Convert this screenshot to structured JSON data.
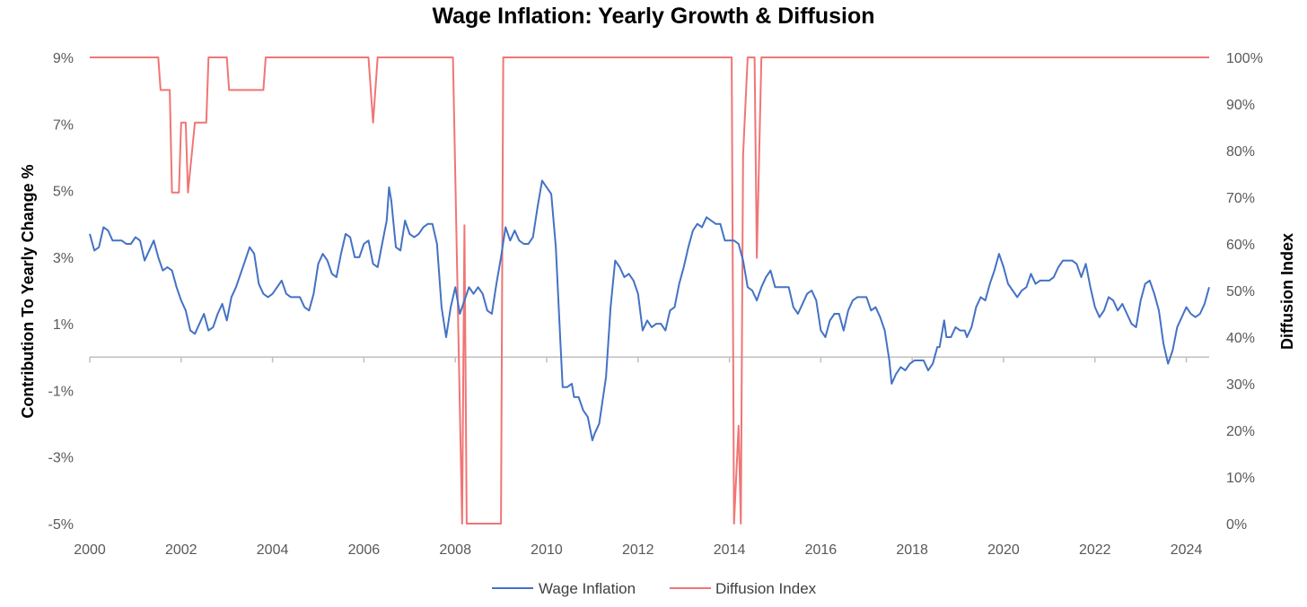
{
  "chart_data": {
    "type": "line",
    "title": "Wage Inflation: Yearly Growth & Diffusion",
    "y_left_label": "Contribution To Yearly Change %",
    "y_right_label": "Diffusion Index",
    "x_ticks": [
      "2000",
      "2002",
      "2004",
      "2006",
      "2008",
      "2010",
      "2012",
      "2014",
      "2016",
      "2018",
      "2020",
      "2022",
      "2024"
    ],
    "y_left_ticks": [
      "9%",
      "7%",
      "5%",
      "3%",
      "1%",
      "-1%",
      "-3%",
      "-5%"
    ],
    "y_right_ticks": [
      "100%",
      "90%",
      "80%",
      "70%",
      "60%",
      "50%",
      "40%",
      "30%",
      "20%",
      "10%",
      "0%"
    ],
    "xlim": [
      2000,
      2024.5
    ],
    "ylim_left": [
      -5,
      9
    ],
    "ylim_right": [
      0,
      100
    ],
    "grid": false,
    "legend_position": "bottom",
    "series": [
      {
        "name": "Wage Inflation",
        "axis": "left",
        "color": "#4472C4",
        "points": [
          [
            2000.0,
            3.7
          ],
          [
            2000.1,
            3.2
          ],
          [
            2000.2,
            3.3
          ],
          [
            2000.3,
            3.9
          ],
          [
            2000.4,
            3.8
          ],
          [
            2000.5,
            3.5
          ],
          [
            2000.7,
            3.5
          ],
          [
            2000.8,
            3.4
          ],
          [
            2000.9,
            3.4
          ],
          [
            2001.0,
            3.6
          ],
          [
            2001.1,
            3.5
          ],
          [
            2001.2,
            2.9
          ],
          [
            2001.4,
            3.5
          ],
          [
            2001.5,
            3.0
          ],
          [
            2001.6,
            2.6
          ],
          [
            2001.7,
            2.7
          ],
          [
            2001.8,
            2.6
          ],
          [
            2001.9,
            2.1
          ],
          [
            2002.0,
            1.7
          ],
          [
            2002.1,
            1.4
          ],
          [
            2002.2,
            0.8
          ],
          [
            2002.3,
            0.7
          ],
          [
            2002.4,
            1.0
          ],
          [
            2002.5,
            1.3
          ],
          [
            2002.6,
            0.8
          ],
          [
            2002.7,
            0.9
          ],
          [
            2002.8,
            1.3
          ],
          [
            2002.9,
            1.6
          ],
          [
            2003.0,
            1.1
          ],
          [
            2003.1,
            1.8
          ],
          [
            2003.2,
            2.1
          ],
          [
            2003.3,
            2.5
          ],
          [
            2003.4,
            2.9
          ],
          [
            2003.5,
            3.3
          ],
          [
            2003.6,
            3.1
          ],
          [
            2003.7,
            2.2
          ],
          [
            2003.8,
            1.9
          ],
          [
            2003.9,
            1.8
          ],
          [
            2004.0,
            1.9
          ],
          [
            2004.1,
            2.1
          ],
          [
            2004.2,
            2.3
          ],
          [
            2004.3,
            1.9
          ],
          [
            2004.4,
            1.8
          ],
          [
            2004.5,
            1.8
          ],
          [
            2004.6,
            1.8
          ],
          [
            2004.7,
            1.5
          ],
          [
            2004.8,
            1.4
          ],
          [
            2004.9,
            1.9
          ],
          [
            2005.0,
            2.8
          ],
          [
            2005.1,
            3.1
          ],
          [
            2005.2,
            2.9
          ],
          [
            2005.3,
            2.5
          ],
          [
            2005.4,
            2.4
          ],
          [
            2005.5,
            3.1
          ],
          [
            2005.6,
            3.7
          ],
          [
            2005.7,
            3.6
          ],
          [
            2005.8,
            3.0
          ],
          [
            2005.9,
            3.0
          ],
          [
            2006.0,
            3.4
          ],
          [
            2006.1,
            3.5
          ],
          [
            2006.2,
            2.8
          ],
          [
            2006.3,
            2.7
          ],
          [
            2006.4,
            3.4
          ],
          [
            2006.5,
            4.1
          ],
          [
            2006.55,
            5.1
          ],
          [
            2006.6,
            4.7
          ],
          [
            2006.7,
            3.3
          ],
          [
            2006.8,
            3.2
          ],
          [
            2006.9,
            4.1
          ],
          [
            2007.0,
            3.7
          ],
          [
            2007.1,
            3.6
          ],
          [
            2007.2,
            3.7
          ],
          [
            2007.3,
            3.9
          ],
          [
            2007.4,
            4.0
          ],
          [
            2007.5,
            4.0
          ],
          [
            2007.6,
            3.4
          ],
          [
            2007.7,
            1.5
          ],
          [
            2007.8,
            0.6
          ],
          [
            2007.9,
            1.5
          ],
          [
            2008.0,
            2.1
          ],
          [
            2008.1,
            1.3
          ],
          [
            2008.2,
            1.7
          ],
          [
            2008.3,
            2.1
          ],
          [
            2008.4,
            1.9
          ],
          [
            2008.5,
            2.1
          ],
          [
            2008.6,
            1.9
          ],
          [
            2008.7,
            1.4
          ],
          [
            2008.8,
            1.3
          ],
          [
            2008.9,
            2.2
          ],
          [
            2009.0,
            3.0
          ],
          [
            2009.1,
            3.9
          ],
          [
            2009.2,
            3.5
          ],
          [
            2009.3,
            3.8
          ],
          [
            2009.4,
            3.5
          ],
          [
            2009.5,
            3.4
          ],
          [
            2009.6,
            3.4
          ],
          [
            2009.7,
            3.6
          ],
          [
            2009.8,
            4.5
          ],
          [
            2009.9,
            5.3
          ],
          [
            2010.0,
            5.1
          ],
          [
            2010.1,
            4.9
          ],
          [
            2010.2,
            3.3
          ],
          [
            2010.3,
            0.5
          ],
          [
            2010.35,
            -0.9
          ],
          [
            2010.45,
            -0.9
          ],
          [
            2010.55,
            -0.8
          ],
          [
            2010.6,
            -1.2
          ],
          [
            2010.7,
            -1.2
          ],
          [
            2010.8,
            -1.6
          ],
          [
            2010.9,
            -1.8
          ],
          [
            2011.0,
            -2.5
          ],
          [
            2011.05,
            -2.3
          ],
          [
            2011.15,
            -2.0
          ],
          [
            2011.3,
            -0.6
          ],
          [
            2011.4,
            1.5
          ],
          [
            2011.5,
            2.9
          ],
          [
            2011.6,
            2.7
          ],
          [
            2011.7,
            2.4
          ],
          [
            2011.8,
            2.5
          ],
          [
            2011.9,
            2.3
          ],
          [
            2012.0,
            1.9
          ],
          [
            2012.1,
            0.8
          ],
          [
            2012.2,
            1.1
          ],
          [
            2012.3,
            0.9
          ],
          [
            2012.4,
            1.0
          ],
          [
            2012.5,
            1.0
          ],
          [
            2012.6,
            0.8
          ],
          [
            2012.7,
            1.4
          ],
          [
            2012.8,
            1.5
          ],
          [
            2012.9,
            2.2
          ],
          [
            2013.0,
            2.7
          ],
          [
            2013.1,
            3.3
          ],
          [
            2013.2,
            3.8
          ],
          [
            2013.3,
            4.0
          ],
          [
            2013.4,
            3.9
          ],
          [
            2013.5,
            4.2
          ],
          [
            2013.6,
            4.1
          ],
          [
            2013.7,
            4.0
          ],
          [
            2013.8,
            4.0
          ],
          [
            2013.9,
            3.5
          ],
          [
            2014.0,
            3.5
          ],
          [
            2014.1,
            3.5
          ],
          [
            2014.2,
            3.4
          ],
          [
            2014.3,
            2.9
          ],
          [
            2014.4,
            2.1
          ],
          [
            2014.5,
            2.0
          ],
          [
            2014.6,
            1.7
          ],
          [
            2014.7,
            2.1
          ],
          [
            2014.8,
            2.4
          ],
          [
            2014.9,
            2.6
          ],
          [
            2015.0,
            2.1
          ],
          [
            2015.1,
            2.1
          ],
          [
            2015.2,
            2.1
          ],
          [
            2015.3,
            2.1
          ],
          [
            2015.4,
            1.5
          ],
          [
            2015.5,
            1.3
          ],
          [
            2015.6,
            1.6
          ],
          [
            2015.7,
            1.9
          ],
          [
            2015.8,
            2.0
          ],
          [
            2015.9,
            1.7
          ],
          [
            2016.0,
            0.8
          ],
          [
            2016.1,
            0.6
          ],
          [
            2016.2,
            1.1
          ],
          [
            2016.3,
            1.3
          ],
          [
            2016.4,
            1.3
          ],
          [
            2016.5,
            0.8
          ],
          [
            2016.6,
            1.4
          ],
          [
            2016.7,
            1.7
          ],
          [
            2016.8,
            1.8
          ],
          [
            2016.9,
            1.8
          ],
          [
            2017.0,
            1.8
          ],
          [
            2017.1,
            1.4
          ],
          [
            2017.2,
            1.5
          ],
          [
            2017.3,
            1.2
          ],
          [
            2017.4,
            0.8
          ],
          [
            2017.5,
            -0.1
          ],
          [
            2017.55,
            -0.8
          ],
          [
            2017.65,
            -0.5
          ],
          [
            2017.75,
            -0.3
          ],
          [
            2017.85,
            -0.4
          ],
          [
            2017.95,
            -0.2
          ],
          [
            2018.05,
            -0.1
          ],
          [
            2018.15,
            -0.1
          ],
          [
            2018.25,
            -0.1
          ],
          [
            2018.35,
            -0.4
          ],
          [
            2018.45,
            -0.2
          ],
          [
            2018.55,
            0.3
          ],
          [
            2018.6,
            0.3
          ],
          [
            2018.7,
            1.1
          ],
          [
            2018.75,
            0.6
          ],
          [
            2018.85,
            0.6
          ],
          [
            2018.95,
            0.9
          ],
          [
            2019.05,
            0.8
          ],
          [
            2019.15,
            0.8
          ],
          [
            2019.2,
            0.6
          ],
          [
            2019.3,
            0.9
          ],
          [
            2019.4,
            1.5
          ],
          [
            2019.5,
            1.8
          ],
          [
            2019.6,
            1.7
          ],
          [
            2019.7,
            2.2
          ],
          [
            2019.8,
            2.6
          ],
          [
            2019.9,
            3.1
          ],
          [
            2020.0,
            2.7
          ],
          [
            2020.1,
            2.2
          ],
          [
            2020.2,
            2.0
          ],
          [
            2020.3,
            1.8
          ],
          [
            2020.4,
            2.0
          ],
          [
            2020.5,
            2.1
          ],
          [
            2020.6,
            2.5
          ],
          [
            2020.7,
            2.2
          ],
          [
            2020.8,
            2.3
          ],
          [
            2020.9,
            2.3
          ],
          [
            2021.0,
            2.3
          ],
          [
            2021.1,
            2.4
          ],
          [
            2021.2,
            2.7
          ],
          [
            2021.3,
            2.9
          ],
          [
            2021.4,
            2.9
          ],
          [
            2021.5,
            2.9
          ],
          [
            2021.6,
            2.8
          ],
          [
            2021.7,
            2.4
          ],
          [
            2021.8,
            2.8
          ],
          [
            2021.9,
            2.1
          ],
          [
            2022.0,
            1.5
          ],
          [
            2022.1,
            1.2
          ],
          [
            2022.2,
            1.4
          ],
          [
            2022.3,
            1.8
          ],
          [
            2022.4,
            1.7
          ],
          [
            2022.5,
            1.4
          ],
          [
            2022.6,
            1.6
          ],
          [
            2022.7,
            1.3
          ],
          [
            2022.8,
            1.0
          ],
          [
            2022.9,
            0.9
          ],
          [
            2023.0,
            1.7
          ],
          [
            2023.1,
            2.2
          ],
          [
            2023.2,
            2.3
          ],
          [
            2023.3,
            1.9
          ],
          [
            2023.4,
            1.4
          ],
          [
            2023.5,
            0.4
          ],
          [
            2023.6,
            -0.2
          ],
          [
            2023.7,
            0.2
          ],
          [
            2023.8,
            0.9
          ],
          [
            2023.9,
            1.2
          ],
          [
            2024.0,
            1.5
          ],
          [
            2024.1,
            1.3
          ],
          [
            2024.2,
            1.2
          ],
          [
            2024.3,
            1.3
          ],
          [
            2024.4,
            1.6
          ],
          [
            2024.5,
            2.1
          ]
        ]
      },
      {
        "name": "Diffusion Index",
        "axis": "right",
        "color": "#F07575",
        "points": [
          [
            2000.0,
            100
          ],
          [
            2001.5,
            100
          ],
          [
            2001.55,
            93
          ],
          [
            2001.75,
            93
          ],
          [
            2001.8,
            71
          ],
          [
            2001.95,
            71
          ],
          [
            2002.0,
            86
          ],
          [
            2002.1,
            86
          ],
          [
            2002.15,
            71
          ],
          [
            2002.3,
            86
          ],
          [
            2002.55,
            86
          ],
          [
            2002.6,
            100
          ],
          [
            2003.0,
            100
          ],
          [
            2003.05,
            93
          ],
          [
            2003.8,
            93
          ],
          [
            2003.85,
            100
          ],
          [
            2006.1,
            100
          ],
          [
            2006.2,
            86
          ],
          [
            2006.3,
            100
          ],
          [
            2007.95,
            100
          ],
          [
            2008.15,
            0
          ],
          [
            2008.2,
            64
          ],
          [
            2008.25,
            0
          ],
          [
            2009.0,
            0
          ],
          [
            2009.05,
            100
          ],
          [
            2014.05,
            100
          ],
          [
            2014.1,
            0
          ],
          [
            2014.2,
            21
          ],
          [
            2014.25,
            0
          ],
          [
            2014.3,
            79
          ],
          [
            2014.4,
            100
          ],
          [
            2014.55,
            100
          ],
          [
            2014.6,
            57
          ],
          [
            2014.7,
            100
          ],
          [
            2024.5,
            100
          ]
        ]
      }
    ]
  }
}
